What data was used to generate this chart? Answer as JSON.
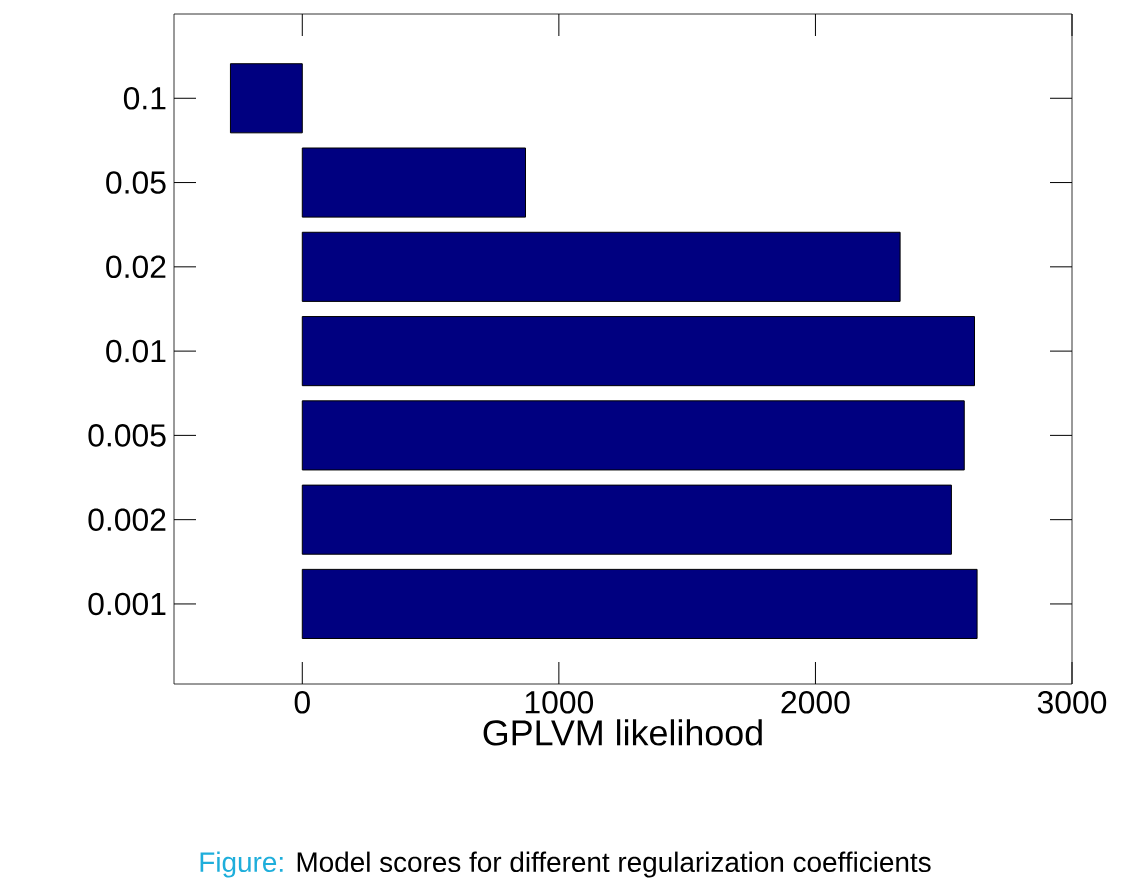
{
  "chart_data": {
    "type": "bar",
    "orientation": "horizontal",
    "xlabel": "GPLVM likelihood",
    "categories": [
      "0.1",
      "0.05",
      "0.02",
      "0.01",
      "0.005",
      "0.002",
      "0.001"
    ],
    "values": [
      -280,
      870,
      2330,
      2620,
      2580,
      2530,
      2630
    ],
    "color": "#000080",
    "xlim": [
      -500,
      3000
    ],
    "xticks": [
      0,
      1000,
      2000,
      3000
    ],
    "tick_labels": "xy",
    "grid": false,
    "annotations": [
      "Figure:",
      "Model scores for different regularization coefficients"
    ]
  }
}
